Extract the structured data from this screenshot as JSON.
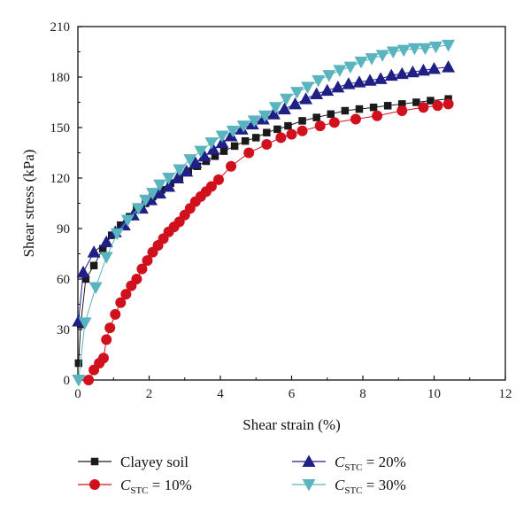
{
  "chart_data": {
    "type": "line",
    "xlabel": "Shear strain (%)",
    "ylabel": "Shear stress (kPa)",
    "xlim": [
      0,
      12
    ],
    "ylim": [
      0,
      210
    ],
    "xticks": [
      "0",
      "2",
      "4",
      "6",
      "8",
      "10",
      "12"
    ],
    "yticks": [
      "0",
      "30",
      "60",
      "90",
      "120",
      "150",
      "180",
      "210"
    ],
    "grid": false,
    "legend_position": "bottom",
    "series": [
      {
        "name": "Clayey soil",
        "legend_label": {
          "main": "Clayey soil",
          "sub": "",
          "suffix": ""
        },
        "marker": "square",
        "color": "#1a1a1a",
        "x": [
          0.02,
          0.08,
          0.22,
          0.45,
          0.7,
          0.95,
          1.2,
          1.45,
          1.65,
          1.9,
          2.1,
          2.35,
          2.6,
          2.85,
          3.1,
          3.35,
          3.6,
          3.85,
          4.1,
          4.4,
          4.7,
          5.0,
          5.3,
          5.6,
          5.9,
          6.3,
          6.7,
          7.1,
          7.5,
          7.9,
          8.3,
          8.7,
          9.1,
          9.5,
          9.9,
          10.4
        ],
        "y": [
          10,
          33,
          60,
          68,
          78,
          86,
          92,
          97,
          102,
          105,
          109,
          113,
          117,
          120,
          124,
          127,
          130,
          133,
          136,
          139,
          142,
          144,
          147,
          149,
          151,
          154,
          156,
          158,
          160,
          161,
          162,
          163,
          164,
          165,
          166,
          167
        ]
      },
      {
        "name": "C STC = 10%",
        "legend_label": {
          "main": "C",
          "sub": "STC",
          "suffix": " = 10%"
        },
        "marker": "circle",
        "color": "#d0101c",
        "x": [
          0.3,
          0.45,
          0.6,
          0.72,
          0.8,
          0.9,
          1.05,
          1.2,
          1.35,
          1.5,
          1.65,
          1.8,
          1.95,
          2.1,
          2.25,
          2.4,
          2.55,
          2.7,
          2.85,
          3.0,
          3.15,
          3.3,
          3.45,
          3.6,
          3.75,
          3.95,
          4.3,
          4.8,
          5.3,
          5.7,
          6.0,
          6.3,
          6.8,
          7.2,
          7.8,
          8.4,
          9.1,
          9.7,
          10.1,
          10.4
        ],
        "y": [
          0,
          6,
          10,
          13,
          24,
          31,
          39,
          46,
          51,
          56,
          60,
          66,
          71,
          76,
          80,
          84,
          88,
          91,
          94,
          98,
          102,
          106,
          109,
          112,
          115,
          119,
          127,
          135,
          140,
          144,
          146,
          148,
          151,
          153,
          155,
          157,
          160,
          162,
          163,
          164
        ]
      },
      {
        "name": "C STC = 20%",
        "legend_label": {
          "main": "C",
          "sub": "STC",
          "suffix": " = 20%"
        },
        "marker": "triangle-up",
        "color": "#1f1f86",
        "x": [
          0.02,
          0.15,
          0.45,
          0.8,
          1.05,
          1.3,
          1.55,
          1.8,
          2.05,
          2.3,
          2.55,
          2.8,
          3.05,
          3.3,
          3.55,
          3.8,
          4.05,
          4.3,
          4.6,
          4.9,
          5.2,
          5.5,
          5.8,
          6.1,
          6.4,
          6.7,
          7.0,
          7.3,
          7.6,
          7.9,
          8.2,
          8.5,
          8.8,
          9.1,
          9.4,
          9.7,
          10.0,
          10.4
        ],
        "y": [
          35,
          64,
          76,
          82,
          88,
          92,
          98,
          102,
          107,
          111,
          115,
          120,
          124,
          129,
          133,
          137,
          141,
          145,
          149,
          152,
          155,
          158,
          161,
          164,
          167,
          170,
          172,
          174,
          176,
          177,
          178,
          179,
          181,
          182,
          183,
          184,
          185,
          186
        ]
      },
      {
        "name": "C STC = 30%",
        "legend_label": {
          "main": "C",
          "sub": "STC",
          "suffix": " = 30%"
        },
        "marker": "triangle-down",
        "color": "#5ab4bf",
        "x": [
          0.02,
          0.2,
          0.5,
          0.8,
          1.1,
          1.4,
          1.7,
          1.9,
          2.1,
          2.3,
          2.55,
          2.85,
          3.15,
          3.45,
          3.75,
          4.05,
          4.35,
          4.65,
          4.95,
          5.25,
          5.55,
          5.85,
          6.15,
          6.45,
          6.75,
          7.05,
          7.35,
          7.65,
          7.95,
          8.25,
          8.55,
          8.85,
          9.15,
          9.45,
          9.75,
          10.05,
          10.4
        ],
        "y": [
          0,
          34,
          55,
          73,
          87,
          95,
          102,
          107,
          111,
          116,
          120,
          125,
          131,
          136,
          141,
          145,
          148,
          151,
          154,
          157,
          162,
          167,
          171,
          174,
          178,
          181,
          184,
          186,
          189,
          191,
          193,
          195,
          196,
          197,
          197,
          198,
          199
        ]
      }
    ]
  }
}
